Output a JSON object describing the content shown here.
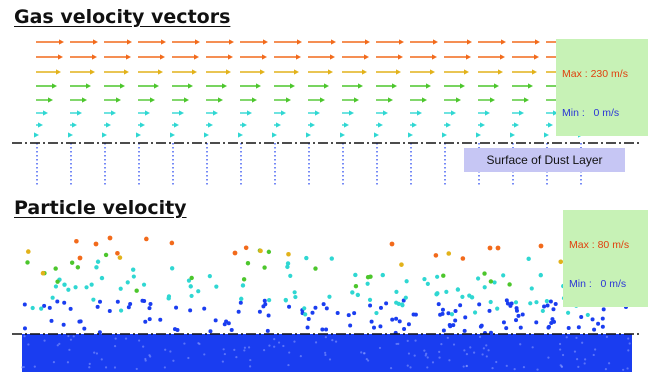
{
  "gas_panel": {
    "title": "Gas velocity vectors",
    "legend": {
      "max_label": "Max : ",
      "max_value": "230 m/s",
      "min_label": "Min : ",
      "min_value": "0 m/s"
    },
    "surface_label": "Surface of Dust Layer"
  },
  "particle_panel": {
    "title": "Particle velocity",
    "legend": {
      "max_label": "Max : ",
      "max_value": "80 m/s",
      "min_label": "Min : ",
      "min_value": "0 m/s"
    }
  },
  "colors": {
    "fast": "#f26a1b",
    "medium": "#e2b21a",
    "slow_green": "#4cc62c",
    "slow_cyan": "#2fd7d2",
    "slowest": "#1a3df0",
    "surface_line": "#111111",
    "legend_bg": "#c7f2b6",
    "surface_box_bg": "#c6c6f4"
  }
}
